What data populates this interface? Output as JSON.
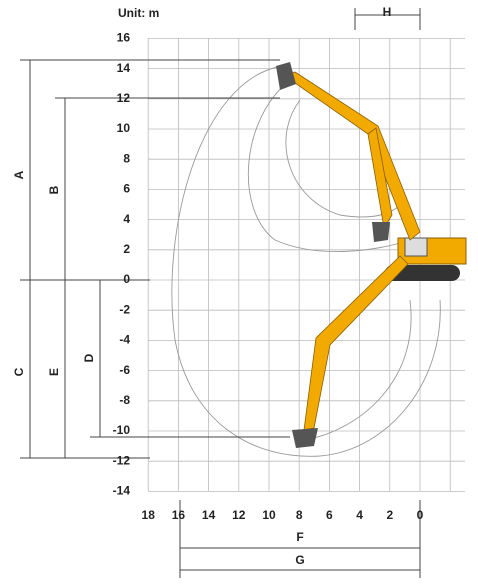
{
  "unit_label": "Unit: m",
  "y_axis": {
    "ticks": [
      16,
      14,
      12,
      10,
      8,
      6,
      4,
      2,
      0,
      -2,
      -4,
      -6,
      -8,
      -10,
      -12,
      -14
    ]
  },
  "x_axis": {
    "ticks": [
      18,
      16,
      14,
      12,
      10,
      8,
      6,
      4,
      2,
      0
    ]
  },
  "dimensions": {
    "A": "A",
    "B": "B",
    "C": "C",
    "D": "D",
    "E": "E",
    "F": "F",
    "G": "G",
    "H": "H"
  }
}
